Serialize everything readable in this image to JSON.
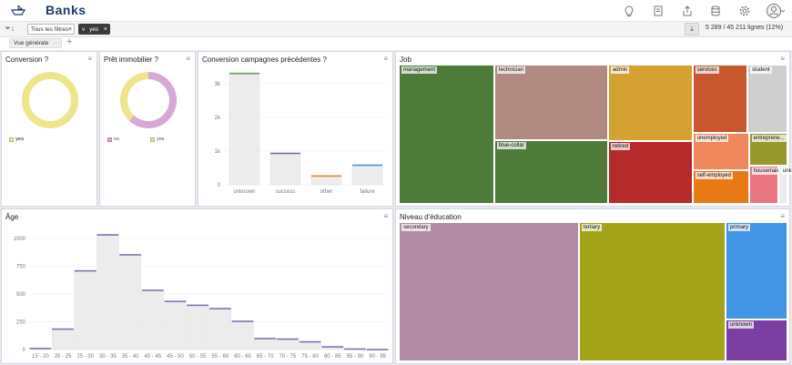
{
  "app": {
    "title": "Banks"
  },
  "toolbar": {
    "icons": [
      "lightbulb-icon",
      "notebook-icon",
      "share-icon",
      "database-icon",
      "gear-icon",
      "avatar"
    ]
  },
  "filters": {
    "chips": [
      {
        "label": "Tous les filtres"
      },
      {
        "label": "yes",
        "prefix": "v"
      }
    ],
    "row_count": "5 289 / 45 211 lignes (12%)"
  },
  "views": {
    "tab_label": "Vue générale",
    "more": "···",
    "add": "+"
  },
  "panels": {
    "conversion": {
      "title": "Conversion ?",
      "chart_data": {
        "type": "pie",
        "style": "donut",
        "labels": [
          "yes"
        ],
        "values": [
          100
        ],
        "colors": [
          "#ede58c"
        ],
        "legend": [
          {
            "label": "yes",
            "color": "#ede58c"
          }
        ]
      }
    },
    "pret": {
      "title": "Prêt immobilier ?",
      "chart_data": {
        "type": "pie",
        "style": "donut",
        "labels": [
          "no",
          "yes"
        ],
        "values": [
          62,
          38
        ],
        "colors": [
          "#d6a8d6",
          "#ede58c"
        ],
        "legend": [
          {
            "label": "no",
            "color": "#d6a8d6"
          },
          {
            "label": "yes",
            "color": "#ede58c"
          }
        ]
      }
    },
    "campagnes": {
      "title": "Conversion campagnes précédentes ?",
      "chart_data": {
        "type": "bar",
        "categories": [
          "unknown",
          "success",
          "other",
          "failure"
        ],
        "values": [
          3320,
          950,
          280,
          600
        ],
        "colors": [
          "#5aa14a",
          "#7b5ea7",
          "#e4862c",
          "#4a90c8"
        ],
        "yticks": [
          "0",
          "1k",
          "2k",
          "3k"
        ],
        "ylim": [
          0,
          3400
        ]
      }
    },
    "job": {
      "title": "Job",
      "chart_data": {
        "type": "treemap",
        "items": [
          {
            "label": "management",
            "value": 1300,
            "color": "#4e7a3a"
          },
          {
            "label": "technician",
            "value": 840,
            "color": "#b08a80"
          },
          {
            "label": "blue-collar",
            "value": 708,
            "color": "#4e7a3a"
          },
          {
            "label": "admin",
            "value": 631,
            "color": "#d5a132"
          },
          {
            "label": "retired",
            "value": 516,
            "color": "#b52a2a"
          },
          {
            "label": "services",
            "value": 369,
            "color": "#c8562e"
          },
          {
            "label": "unemployed",
            "value": 202,
            "color": "#f0865c"
          },
          {
            "label": "self-employed",
            "value": 187,
            "color": "#e87a15"
          },
          {
            "label": "student",
            "value": 269,
            "color": "#cfcfcf"
          },
          {
            "label": "entrepreneur",
            "display": "entreprene...",
            "value": 123,
            "color": "#98992d"
          },
          {
            "label": "housemaid",
            "value": 109,
            "color": "#ea7583"
          },
          {
            "label": "unknown",
            "value": 34,
            "color": "#ebebeb"
          }
        ]
      }
    },
    "age": {
      "title": "Âge",
      "chart_data": {
        "type": "bar",
        "categories": [
          "15 - 20",
          "20 - 25",
          "25 - 30",
          "30 - 35",
          "35 - 40",
          "40 - 45",
          "45 - 50",
          "50 - 55",
          "55 - 60",
          "60 - 65",
          "65 - 70",
          "70 - 75",
          "75 - 80",
          "80 - 85",
          "85 - 90",
          "90 - 95"
        ],
        "values": [
          15,
          190,
          715,
          1040,
          860,
          540,
          440,
          405,
          375,
          260,
          105,
          100,
          75,
          30,
          10,
          5
        ],
        "yticks": [
          "0",
          "250",
          "500",
          "750",
          "1000"
        ],
        "ylim": [
          0,
          1100
        ],
        "color": "#7b6fb0"
      }
    },
    "education": {
      "title": "Niveau d'éducation",
      "chart_data": {
        "type": "treemap",
        "items": [
          {
            "label": "secondary",
            "value": 2450,
            "color": "#b28ca5"
          },
          {
            "label": "tertiary",
            "value": 1996,
            "color": "#a3a319"
          },
          {
            "label": "primary",
            "value": 591,
            "color": "#4294e5"
          },
          {
            "label": "unknown",
            "value": 252,
            "color": "#7b3fa3"
          }
        ]
      }
    }
  }
}
